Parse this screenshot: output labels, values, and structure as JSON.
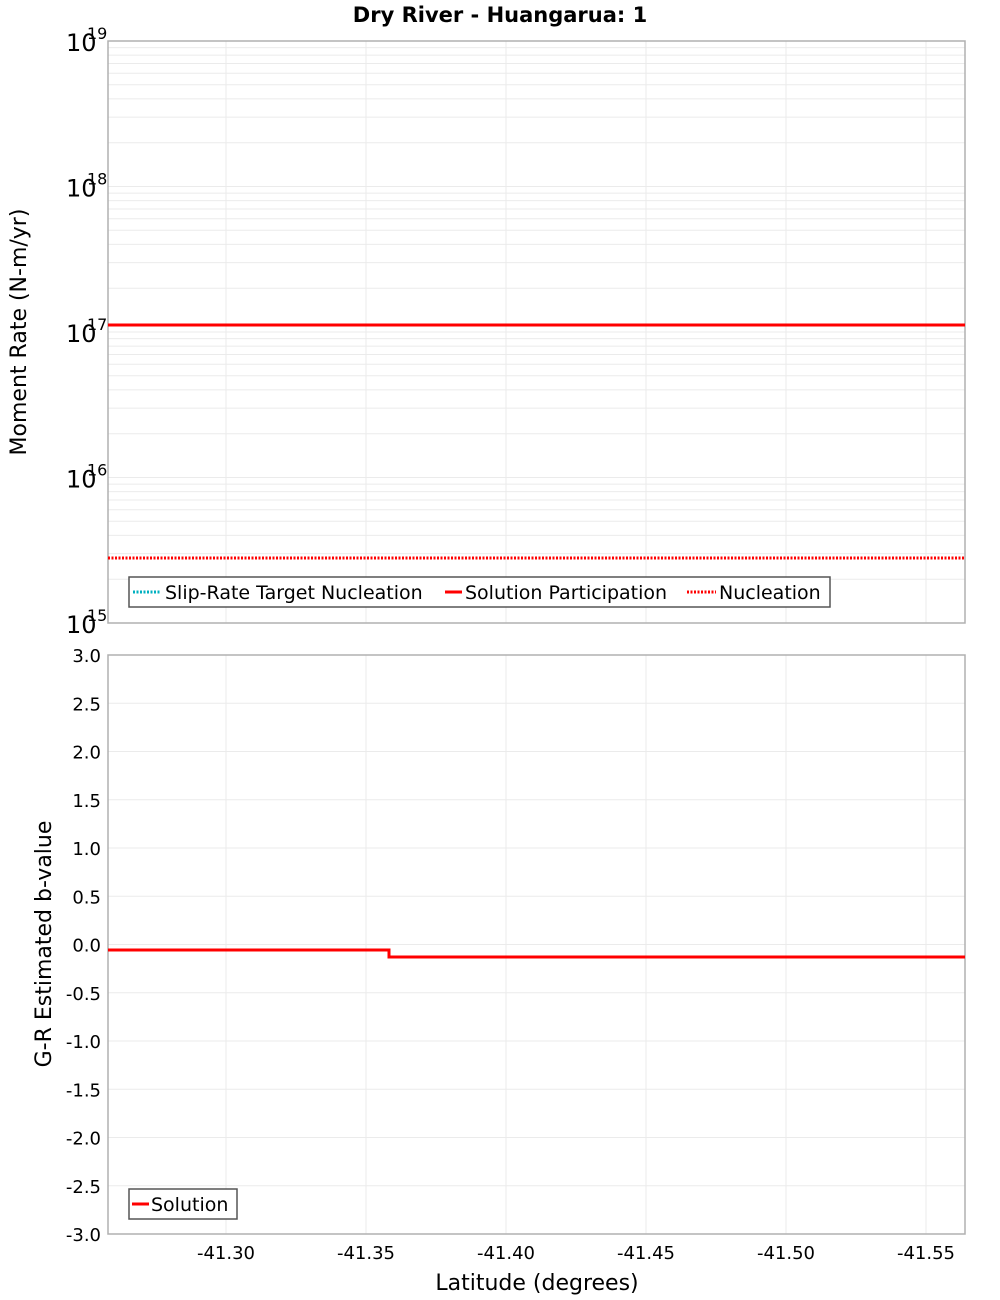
{
  "title": "Dry River - Huangarua: 1",
  "chart_data": [
    {
      "type": "line",
      "title": "Dry River - Huangarua: 1",
      "xlabel": "Latitude (degrees)",
      "ylabel": "Moment Rate (N-m/yr)",
      "yscale": "log",
      "ylim": [
        1000000000000000.0,
        1e+19
      ],
      "xlim": [
        -41.258,
        -41.564
      ],
      "x_reversed": true,
      "grid": true,
      "legend_position": "lower left",
      "y_tick_labels": [
        "10^15",
        "10^16",
        "10^17",
        "10^18",
        "10^19"
      ],
      "series": [
        {
          "name": "Slip-Rate Target Nucleation",
          "color": "#00b0c0",
          "style": "dotted",
          "x": [],
          "values": []
        },
        {
          "name": "Solution Participation",
          "color": "#ff0000",
          "style": "solid",
          "x": [
            -41.258,
            -41.305,
            -41.358,
            -41.408,
            -41.458,
            -41.508,
            -41.564
          ],
          "values": [
            1.1e+17,
            1.1e+17,
            1.1e+17,
            1.1e+17,
            1.1e+17,
            1.1e+17,
            1.1e+17
          ]
        },
        {
          "name": "Nucleation",
          "color": "#ff0000",
          "style": "dotted",
          "x": [
            -41.258,
            -41.305,
            -41.358,
            -41.408,
            -41.458,
            -41.508,
            -41.564
          ],
          "values": [
            2800000000000000.0,
            2800000000000000.0,
            2800000000000000.0,
            2800000000000000.0,
            2800000000000000.0,
            2800000000000000.0,
            2800000000000000.0
          ]
        }
      ]
    },
    {
      "type": "line",
      "title": "",
      "xlabel": "Latitude (degrees)",
      "ylabel": "G-R Estimated b-value",
      "ylim": [
        -3.0,
        3.0
      ],
      "xlim": [
        -41.258,
        -41.564
      ],
      "x_reversed": true,
      "grid": true,
      "legend_position": "lower left",
      "x_tick_labels": [
        "-41.30",
        "-41.35",
        "-41.40",
        "-41.45",
        "-41.50",
        "-41.55"
      ],
      "y_tick_labels": [
        "3.0",
        "2.5",
        "2.0",
        "1.5",
        "1.0",
        "0.5",
        "0.0",
        "-0.5",
        "-1.0",
        "-1.5",
        "-2.0",
        "-2.5",
        "-3.0"
      ],
      "series": [
        {
          "name": "Solution",
          "color": "#ff0000",
          "style": "solid",
          "x": [
            -41.258,
            -41.305,
            -41.358,
            -41.358,
            -41.408,
            -41.458,
            -41.508,
            -41.564
          ],
          "values": [
            -0.06,
            -0.06,
            -0.06,
            -0.13,
            -0.13,
            -0.13,
            -0.13,
            -0.13
          ]
        }
      ]
    }
  ],
  "top_plot": {
    "ylabel": "Moment Rate (N-m/yr)",
    "ticks": [
      {
        "base": "10",
        "exp": "19"
      },
      {
        "base": "10",
        "exp": "18"
      },
      {
        "base": "10",
        "exp": "17"
      },
      {
        "base": "10",
        "exp": "16"
      },
      {
        "base": "10",
        "exp": "15"
      }
    ],
    "legend": [
      {
        "label": "Slip-Rate Target Nucleation",
        "color": "#00b0c0"
      },
      {
        "label": "Solution Participation",
        "color": "#ff0000"
      },
      {
        "label": "Nucleation",
        "color": "#ff0000"
      }
    ]
  },
  "bottom_plot": {
    "ylabel": "G-R Estimated b-value",
    "yticks": [
      "3.0",
      "2.5",
      "2.0",
      "1.5",
      "1.0",
      "0.5",
      "0.0",
      "-0.5",
      "-1.0",
      "-1.5",
      "-2.0",
      "-2.5",
      "-3.0"
    ],
    "legend": [
      {
        "label": "Solution",
        "color": "#ff0000"
      }
    ]
  },
  "x_axis": {
    "label": "Latitude (degrees)",
    "ticks": [
      "-41.30",
      "-41.35",
      "-41.40",
      "-41.45",
      "-41.50",
      "-41.55"
    ]
  }
}
